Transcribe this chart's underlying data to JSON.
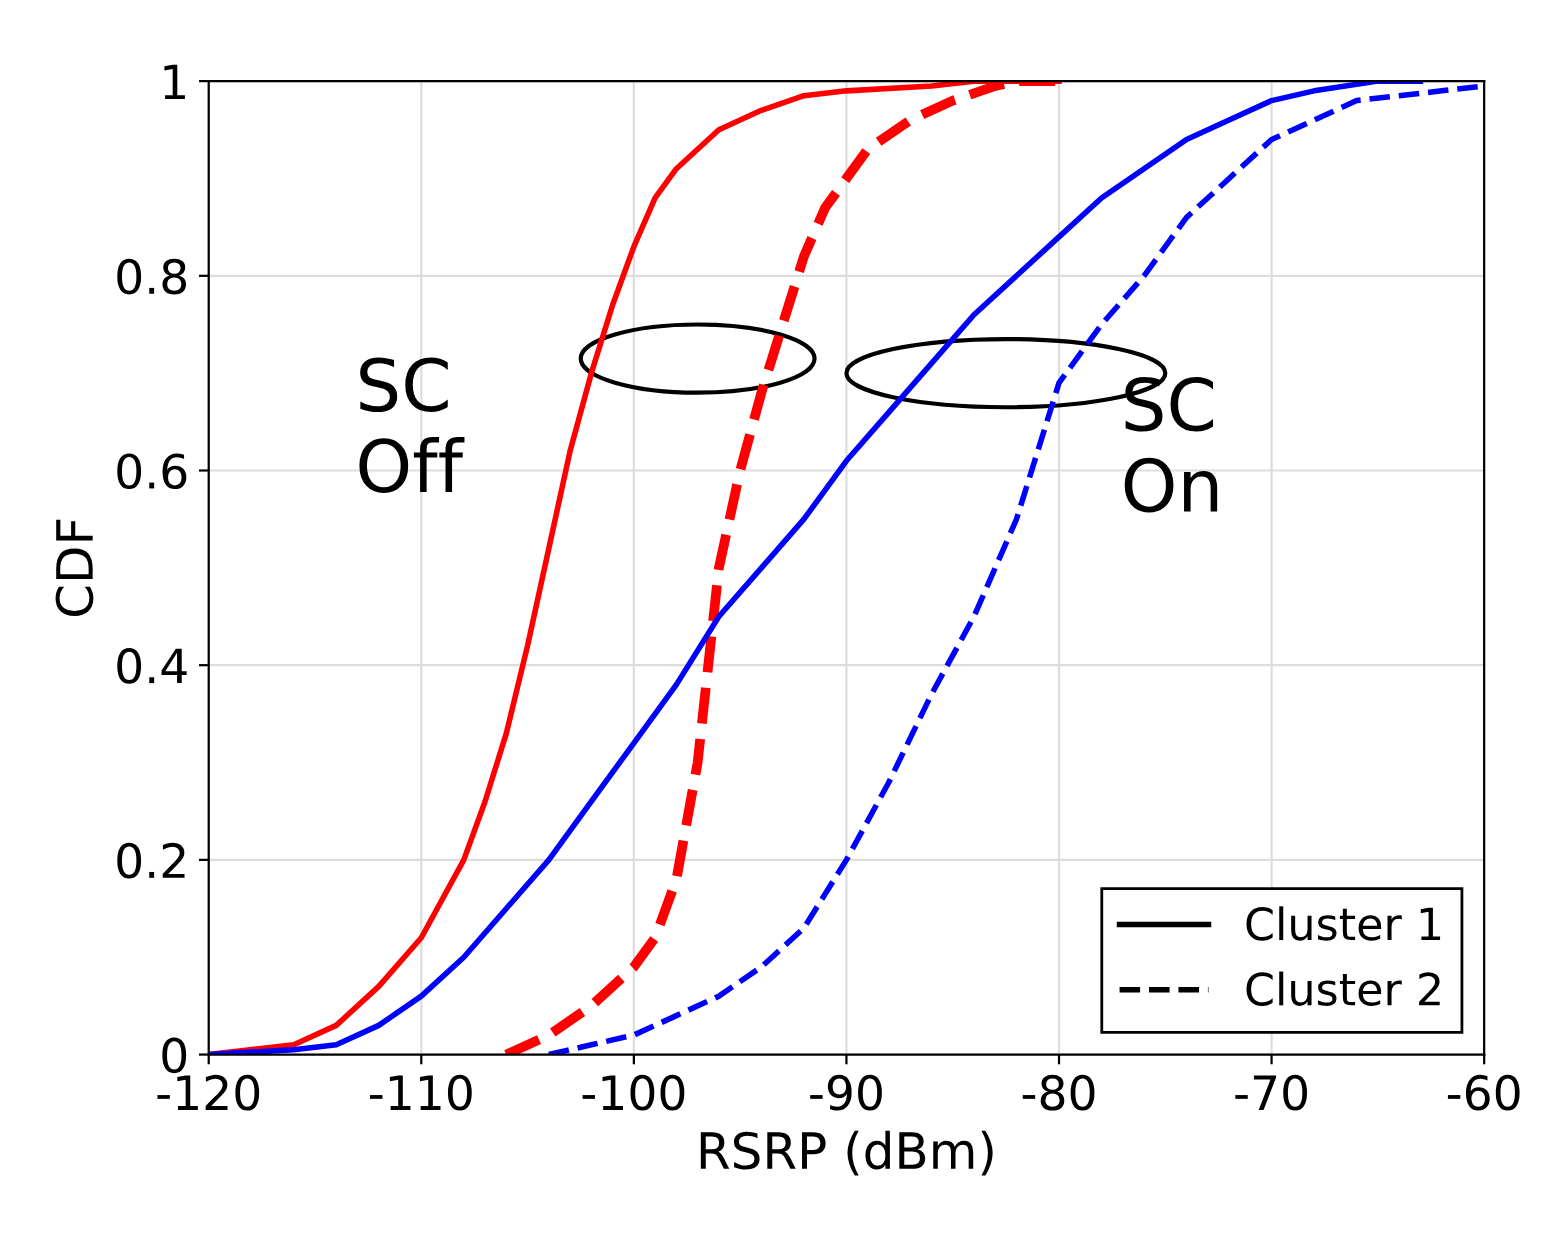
{
  "chart_data": {
    "type": "line",
    "xlabel": "RSRP (dBm)",
    "ylabel": "CDF",
    "xlim": [
      -120,
      -60
    ],
    "xticks": [
      -120,
      -110,
      -100,
      -90,
      -80,
      -70,
      -60
    ],
    "ylim": [
      0,
      1
    ],
    "yticks": [
      0,
      0.2,
      0.4,
      0.6,
      0.8,
      1
    ],
    "grid": true,
    "legend": "bottom right",
    "marker": "none",
    "annotations": [
      "SC\nOff",
      "SC\nOn"
    ],
    "series": [
      {
        "color": "#ff0000",
        "line_style": "solid",
        "x": [
          -120,
          -116,
          -114,
          -112,
          -110,
          -108,
          -107,
          -106,
          -105,
          -104,
          -103,
          -102,
          -101,
          -100,
          -99,
          -98,
          -96,
          -94,
          -92,
          -90,
          -86,
          -84,
          -80
        ],
        "values": [
          0,
          0.01,
          0.03,
          0.07,
          0.12,
          0.2,
          0.26,
          0.33,
          0.42,
          0.52,
          0.62,
          0.7,
          0.77,
          0.83,
          0.88,
          0.91,
          0.95,
          0.97,
          0.985,
          0.99,
          0.995,
          1,
          1
        ]
      },
      {
        "color": "#ff0000",
        "line_style": "dashed",
        "x": [
          -106,
          -104,
          -102,
          -100,
          -99,
          -98,
          -97,
          -96.5,
          -96,
          -95,
          -94,
          -93,
          -92,
          -91,
          -90,
          -89,
          -87,
          -85,
          -83,
          -82,
          -80
        ],
        "values": [
          0,
          0.02,
          0.05,
          0.09,
          0.12,
          0.18,
          0.3,
          0.4,
          0.5,
          0.6,
          0.68,
          0.75,
          0.82,
          0.87,
          0.9,
          0.93,
          0.96,
          0.98,
          0.995,
          1,
          1
        ]
      },
      {
        "color": "#0000ff",
        "line_style": "solid",
        "x": [
          -120,
          -116,
          -114,
          -112,
          -110,
          -108,
          -106,
          -104,
          -102,
          -100,
          -98,
          -96,
          -94,
          -92,
          -90,
          -88,
          -86,
          -84,
          -82,
          -80,
          -78,
          -76,
          -74,
          -72,
          -70,
          -68,
          -65,
          -63
        ],
        "values": [
          0,
          0.005,
          0.01,
          0.03,
          0.06,
          0.1,
          0.15,
          0.2,
          0.26,
          0.32,
          0.38,
          0.45,
          0.5,
          0.55,
          0.61,
          0.66,
          0.71,
          0.76,
          0.8,
          0.84,
          0.88,
          0.91,
          0.94,
          0.96,
          0.98,
          0.99,
          1,
          1
        ]
      },
      {
        "color": "#0000ff",
        "line_style": "dashed",
        "x": [
          -104,
          -102,
          -100,
          -98,
          -96,
          -94,
          -92,
          -90,
          -88,
          -86,
          -84,
          -82,
          -81,
          -80,
          -78,
          -76,
          -74,
          -72,
          -70,
          -68,
          -66,
          -64,
          -62,
          -60
        ],
        "values": [
          0,
          0.01,
          0.02,
          0.04,
          0.06,
          0.09,
          0.13,
          0.2,
          0.28,
          0.37,
          0.45,
          0.55,
          0.62,
          0.69,
          0.75,
          0.8,
          0.86,
          0.9,
          0.94,
          0.96,
          0.98,
          0.985,
          0.99,
          0.995
        ]
      },
      {
        "name": "Cluster 1",
        "color": "#000000",
        "line_style": "solid"
      },
      {
        "name": "Cluster 2",
        "color": "#000000",
        "line_style": "dashed"
      }
    ]
  }
}
